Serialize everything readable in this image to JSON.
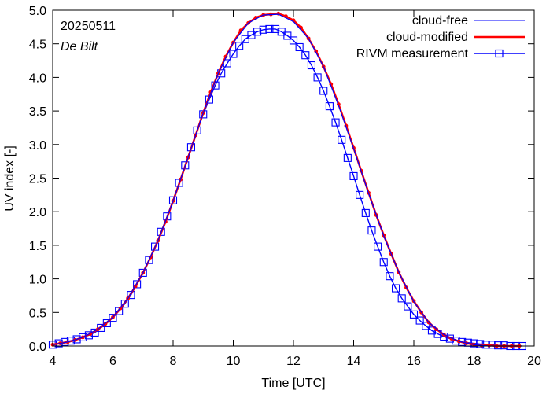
{
  "chart_data": {
    "type": "line",
    "title": "",
    "annotations": {
      "date": "20250511",
      "station": "De Bilt"
    },
    "xlabel": "Time  [UTC]",
    "ylabel": "UV index  [-]",
    "xlim": [
      4,
      20
    ],
    "ylim": [
      0,
      5
    ],
    "xticks": [
      4,
      6,
      8,
      10,
      12,
      14,
      16,
      18,
      20
    ],
    "xtick_labels": [
      "4",
      "6",
      "8",
      "10",
      "12",
      "14",
      "16",
      "18",
      "20"
    ],
    "yticks": [
      0,
      0.5,
      1,
      1.5,
      2,
      2.5,
      3,
      3.5,
      4,
      4.5,
      5
    ],
    "ytick_labels": [
      "0.0",
      "0.5",
      "1.0",
      "1.5",
      "2.0",
      "2.5",
      "3.0",
      "3.5",
      "4.0",
      "4.5",
      "5.0"
    ],
    "grid": false,
    "legend_position": "top-right",
    "series": [
      {
        "name": "cloud-free",
        "color": "#0000ff",
        "style": "thin-line",
        "x": [
          4.0,
          4.5,
          5.0,
          5.5,
          6.0,
          6.5,
          7.0,
          7.5,
          8.0,
          8.5,
          9.0,
          9.5,
          10.0,
          10.5,
          11.0,
          11.5,
          12.0,
          12.5,
          13.0,
          13.5,
          14.0,
          14.5,
          15.0,
          15.5,
          16.0,
          16.5,
          17.0,
          17.5,
          18.0,
          18.5,
          19.0,
          19.5
        ],
        "y": [
          0.02,
          0.06,
          0.13,
          0.25,
          0.43,
          0.71,
          1.09,
          1.57,
          2.16,
          2.81,
          3.47,
          4.06,
          4.52,
          4.81,
          4.93,
          4.94,
          4.83,
          4.58,
          4.16,
          3.58,
          2.94,
          2.27,
          1.64,
          1.1,
          0.66,
          0.35,
          0.17,
          0.07,
          0.02,
          0.0,
          0.0,
          0.0
        ]
      },
      {
        "name": "cloud-modified",
        "color": "#ff0000",
        "style": "thick-line-dots",
        "x": [
          4.0,
          4.25,
          4.5,
          4.75,
          5.0,
          5.25,
          5.5,
          5.75,
          6.0,
          6.25,
          6.5,
          6.75,
          7.0,
          7.25,
          7.5,
          7.75,
          8.0,
          8.25,
          8.5,
          8.75,
          9.0,
          9.25,
          9.5,
          9.75,
          10.0,
          10.25,
          10.5,
          10.75,
          11.0,
          11.25,
          11.5,
          11.75,
          12.0,
          12.25,
          12.5,
          12.75,
          13.0,
          13.25,
          13.5,
          13.75,
          14.0,
          14.25,
          14.5,
          14.75,
          15.0,
          15.25,
          15.5,
          15.75,
          16.0,
          16.25,
          16.5,
          16.75,
          17.0,
          17.25,
          17.5,
          17.75,
          18.0,
          18.25,
          18.5,
          18.75,
          19.0,
          19.25,
          19.5
        ],
        "y": [
          0.02,
          0.04,
          0.06,
          0.09,
          0.13,
          0.18,
          0.25,
          0.33,
          0.43,
          0.56,
          0.71,
          0.89,
          1.09,
          1.32,
          1.57,
          1.85,
          2.16,
          2.48,
          2.81,
          3.14,
          3.47,
          3.78,
          4.06,
          4.31,
          4.52,
          4.7,
          4.81,
          4.89,
          4.93,
          4.94,
          4.95,
          4.91,
          4.85,
          4.74,
          4.58,
          4.39,
          4.16,
          3.9,
          3.6,
          3.28,
          2.95,
          2.61,
          2.28,
          1.95,
          1.65,
          1.37,
          1.1,
          0.87,
          0.67,
          0.5,
          0.35,
          0.25,
          0.17,
          0.11,
          0.07,
          0.04,
          0.02,
          0.01,
          0.01,
          0.0,
          0.0,
          0.0,
          0.0
        ]
      },
      {
        "name": "RIVM measurement",
        "color": "#0000ff",
        "style": "line-squares",
        "x": [
          4.0,
          4.2,
          4.4,
          4.6,
          4.8,
          5.0,
          5.2,
          5.4,
          5.6,
          5.8,
          6.0,
          6.2,
          6.4,
          6.6,
          6.8,
          7.0,
          7.2,
          7.4,
          7.6,
          7.8,
          8.0,
          8.2,
          8.4,
          8.6,
          8.8,
          9.0,
          9.2,
          9.4,
          9.6,
          9.8,
          10.0,
          10.2,
          10.4,
          10.6,
          10.8,
          11.0,
          11.2,
          11.4,
          11.6,
          11.8,
          12.0,
          12.2,
          12.4,
          12.6,
          12.8,
          13.0,
          13.2,
          13.4,
          13.6,
          13.8,
          14.0,
          14.2,
          14.4,
          14.6,
          14.8,
          15.0,
          15.2,
          15.4,
          15.6,
          15.8,
          16.0,
          16.2,
          16.4,
          16.6,
          16.8,
          17.0,
          17.2,
          17.4,
          17.6,
          17.8,
          18.0,
          18.2,
          18.4,
          18.6,
          18.8,
          19.0,
          19.2,
          19.4,
          19.6
        ],
        "y": [
          0.02,
          0.04,
          0.06,
          0.08,
          0.1,
          0.13,
          0.16,
          0.2,
          0.27,
          0.34,
          0.42,
          0.52,
          0.63,
          0.76,
          0.92,
          1.09,
          1.28,
          1.48,
          1.7,
          1.93,
          2.17,
          2.43,
          2.69,
          2.96,
          3.21,
          3.45,
          3.67,
          3.88,
          4.06,
          4.21,
          4.35,
          4.47,
          4.57,
          4.63,
          4.68,
          4.71,
          4.72,
          4.72,
          4.68,
          4.62,
          4.55,
          4.45,
          4.33,
          4.18,
          4.0,
          3.8,
          3.57,
          3.33,
          3.07,
          2.8,
          2.53,
          2.25,
          1.98,
          1.72,
          1.48,
          1.25,
          1.04,
          0.86,
          0.71,
          0.59,
          0.47,
          0.38,
          0.3,
          0.23,
          0.18,
          0.14,
          0.11,
          0.08,
          0.06,
          0.05,
          0.04,
          0.03,
          0.02,
          0.02,
          0.01,
          0.01,
          0.0,
          0.0,
          0.0
        ]
      }
    ]
  }
}
